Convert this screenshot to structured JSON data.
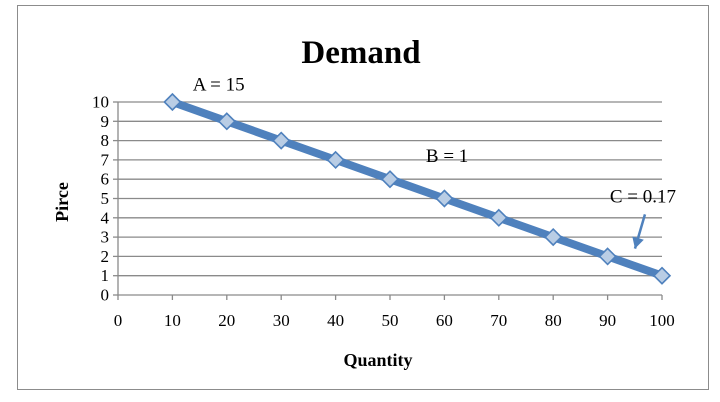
{
  "chart_data": {
    "type": "line",
    "title": "Demand",
    "xlabel": "Quantity",
    "ylabel": "Pirce",
    "xlim": [
      0,
      100
    ],
    "ylim": [
      0,
      10
    ],
    "x_ticks": [
      0,
      10,
      20,
      30,
      40,
      50,
      60,
      70,
      80,
      90,
      100
    ],
    "y_ticks": [
      0,
      1,
      2,
      3,
      4,
      5,
      6,
      7,
      8,
      9,
      10
    ],
    "grid": "horizontal",
    "legend": "none",
    "series": [
      {
        "x": [
          10,
          20,
          30,
          40,
          50,
          60,
          70,
          80,
          90,
          100
        ],
        "values": [
          10,
          9,
          8,
          7,
          6,
          5,
          4,
          3,
          2,
          1
        ],
        "color": "#4f81bd"
      }
    ],
    "annotations": [
      {
        "text": "A = 15",
        "x": 18.5,
        "y": 10.6
      },
      {
        "text": "B = 1",
        "x": 60.5,
        "y": 6.9
      },
      {
        "text": "C = 0.17",
        "x": 96.5,
        "y": 4.8,
        "arrow_to": [
          96.5,
          2.3
        ]
      }
    ]
  }
}
